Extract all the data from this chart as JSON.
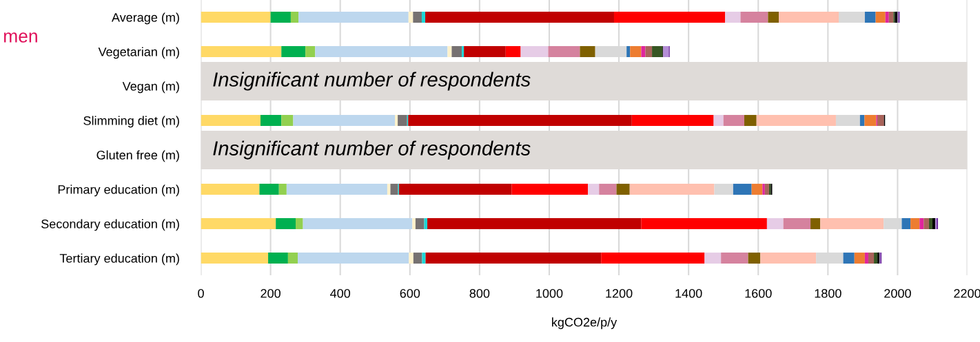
{
  "chart_data": {
    "type": "bar",
    "orientation": "horizontal",
    "stacked": true,
    "title": "men",
    "xlabel": "kgCO2e/p/y",
    "categories": [
      "Average (m)",
      "Vegetarian (m)",
      "Vegan (m)",
      "Slimming diet (m)",
      "Gluten free (m)",
      "Primary education (m)",
      "Secondary education (m)",
      "Tertiary education (m)"
    ],
    "series": [
      {
        "color": "#ffd966",
        "values": [
          200,
          231,
          null,
          171,
          null,
          168,
          215,
          193
        ]
      },
      {
        "color": "#00b050",
        "values": [
          58,
          69,
          null,
          60,
          null,
          56,
          57,
          57
        ]
      },
      {
        "color": "#92d050",
        "values": [
          22,
          28,
          null,
          34,
          null,
          22,
          21,
          28
        ]
      },
      {
        "color": "#bdd7ee",
        "values": [
          316,
          380,
          null,
          292,
          null,
          289,
          314,
          319
        ]
      },
      {
        "color": "#fff2cc",
        "values": [
          13,
          12,
          null,
          8,
          null,
          9,
          9,
          13
        ]
      },
      {
        "color": "#767171",
        "values": [
          25,
          29,
          null,
          27,
          null,
          22,
          25,
          25
        ]
      },
      {
        "color": "#1ed6d6",
        "values": [
          10,
          6,
          null,
          3,
          null,
          3,
          9,
          10
        ]
      },
      {
        "color": "#c00000",
        "values": [
          542,
          120,
          null,
          642,
          null,
          323,
          614,
          504
        ]
      },
      {
        "color": "#ff0000",
        "values": [
          319,
          43,
          null,
          235,
          null,
          219,
          361,
          297
        ]
      },
      {
        "color": "#e6cce6",
        "values": [
          44,
          79,
          null,
          28,
          null,
          32,
          47,
          47
        ]
      },
      {
        "color": "#d5829e",
        "values": [
          79,
          91,
          null,
          60,
          null,
          50,
          78,
          78
        ]
      },
      {
        "color": "#7f6000",
        "values": [
          31,
          44,
          null,
          35,
          null,
          38,
          28,
          35
        ]
      },
      {
        "color": "#ffc0af",
        "values": [
          172,
          0,
          null,
          228,
          null,
          243,
          182,
          160
        ]
      },
      {
        "color": "#d9d9d9",
        "values": [
          75,
          90,
          null,
          69,
          null,
          54,
          52,
          78
        ]
      },
      {
        "color": "#2e75b6",
        "values": [
          31,
          10,
          null,
          13,
          null,
          53,
          25,
          32
        ]
      },
      {
        "color": "#ed7d31",
        "values": [
          28,
          32,
          null,
          34,
          null,
          31,
          26,
          30
        ]
      },
      {
        "color": "#e0269c",
        "values": [
          10,
          12,
          null,
          3,
          null,
          7,
          12,
          10
        ]
      },
      {
        "color": "#a9635a",
        "values": [
          13,
          19,
          null,
          19,
          null,
          12,
          15,
          16
        ]
      },
      {
        "color": "#375623",
        "values": [
          4,
          30,
          null,
          0,
          null,
          5,
          10,
          10
        ]
      },
      {
        "color": "#000000",
        "values": [
          8,
          2,
          null,
          3,
          null,
          4,
          8,
          6
        ]
      },
      {
        "color": "#b48ed6",
        "values": [
          2,
          16,
          null,
          0,
          null,
          0,
          4,
          2
        ]
      },
      {
        "color": "#7030a0",
        "values": [
          4,
          3,
          null,
          0,
          null,
          0,
          4,
          4
        ]
      }
    ],
    "xlim": [
      0,
      2200
    ],
    "xticks": [
      0,
      200,
      400,
      600,
      800,
      1000,
      1200,
      1400,
      1600,
      1800,
      2000,
      2200
    ],
    "grid": "x",
    "legend": false,
    "annotations": [
      "Insignificant number of respondents",
      "Insignificant number of respondents"
    ]
  }
}
